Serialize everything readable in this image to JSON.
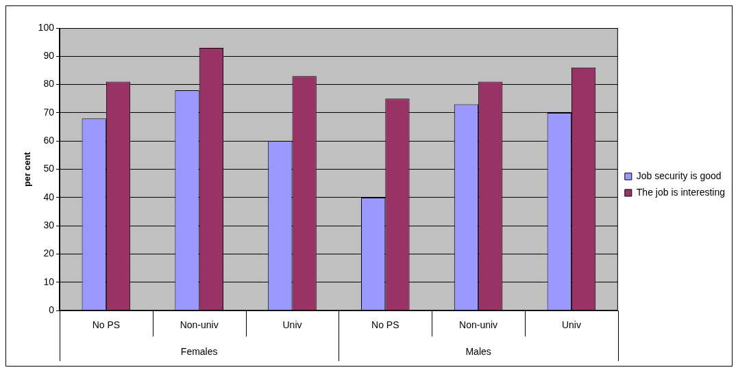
{
  "chart_data": {
    "type": "bar",
    "categories": [
      "No PS",
      "Non-univ",
      "Univ",
      "No PS",
      "Non-univ",
      "Univ"
    ],
    "series": [
      {
        "name": "Job security is good",
        "color": "#9999ff",
        "values": [
          68,
          78,
          60,
          40,
          73,
          70
        ]
      },
      {
        "name": "The job is interesting",
        "color": "#993366",
        "values": [
          81,
          93,
          83,
          75,
          81,
          86
        ]
      }
    ],
    "ylabel": "per cent",
    "ylim": [
      0,
      100
    ],
    "yticks": [
      0,
      10,
      20,
      30,
      40,
      50,
      60,
      70,
      80,
      90,
      100
    ],
    "annotations": [
      "Females",
      "Males"
    ],
    "grid": "y",
    "legend": "right"
  }
}
